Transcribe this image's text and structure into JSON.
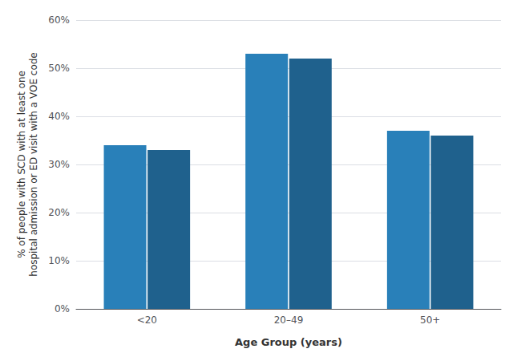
{
  "chart_data": {
    "type": "bar",
    "xlabel": "Age Group (years)",
    "ylabel": "% of people with SCD with at least one\nhospital admission or ED visit with a VOE code",
    "categories": [
      "<20",
      "20–49",
      "50+"
    ],
    "series": [
      {
        "color": "#2980B9",
        "values": [
          34,
          53,
          37
        ]
      },
      {
        "color": "#1F618D",
        "values": [
          33,
          52,
          36
        ]
      }
    ],
    "ylim": [
      0,
      60
    ],
    "yticks": [
      {
        "value": 0,
        "label": "0%"
      },
      {
        "value": 10,
        "label": "10%"
      },
      {
        "value": 20,
        "label": "20%"
      },
      {
        "value": 30,
        "label": "30%"
      },
      {
        "value": 40,
        "label": "40%"
      },
      {
        "value": 50,
        "label": "50%"
      },
      {
        "value": 60,
        "label": "60%"
      }
    ],
    "grid": true
  }
}
